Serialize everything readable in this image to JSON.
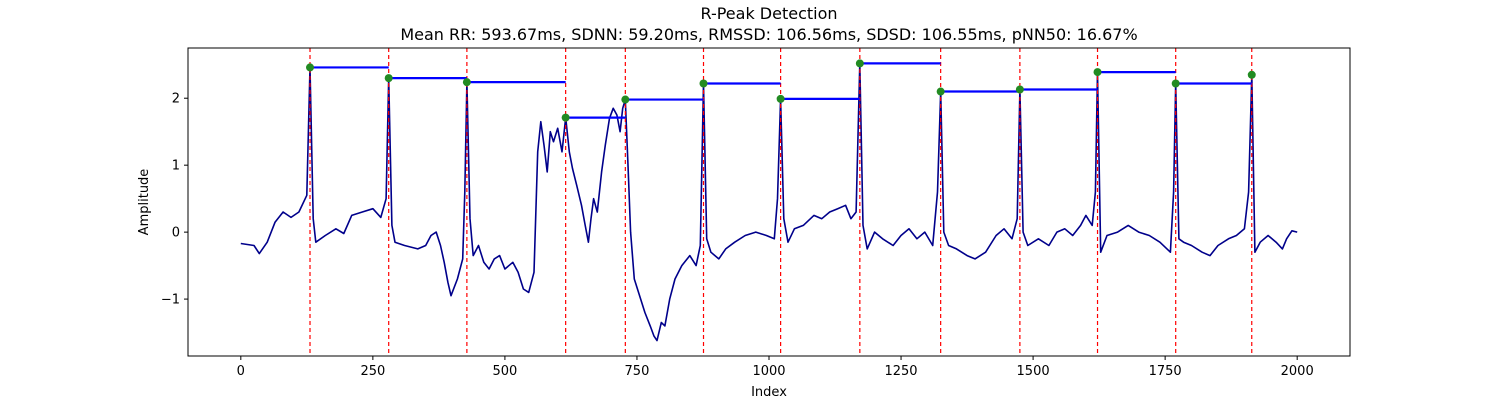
{
  "chart_data": {
    "type": "line",
    "title": "R-Peak Detection",
    "subtitle": "Mean RR: 593.67ms, SDNN: 59.20ms, RMSSD: 106.56ms, SDSD: 106.55ms, pNN50: 16.67%",
    "xlabel": "Index",
    "ylabel": "Amplitude",
    "xlim": [
      -100,
      2100
    ],
    "ylim": [
      -1.85,
      2.75
    ],
    "xticks": [
      0,
      250,
      500,
      750,
      1000,
      1250,
      1500,
      1750,
      2000
    ],
    "yticks": [
      -1,
      0,
      1,
      2
    ],
    "grid": false,
    "colors": {
      "signal": "#00008b",
      "peak_line": "#ff0000",
      "peak_marker": "#228b22",
      "rr_bar": "#0000ff"
    },
    "peaks": [
      {
        "x": 131,
        "y": 2.46
      },
      {
        "x": 280,
        "y": 2.3
      },
      {
        "x": 428,
        "y": 2.24
      },
      {
        "x": 615,
        "y": 1.71
      },
      {
        "x": 728,
        "y": 1.98
      },
      {
        "x": 876,
        "y": 2.22
      },
      {
        "x": 1022,
        "y": 1.99
      },
      {
        "x": 1172,
        "y": 2.52
      },
      {
        "x": 1325,
        "y": 2.1
      },
      {
        "x": 1475,
        "y": 2.13
      },
      {
        "x": 1622,
        "y": 2.39
      },
      {
        "x": 1770,
        "y": 2.22
      },
      {
        "x": 1914,
        "y": 2.35
      }
    ],
    "signal_anchors": [
      [
        0,
        -0.17
      ],
      [
        25,
        -0.2
      ],
      [
        35,
        -0.32
      ],
      [
        50,
        -0.15
      ],
      [
        65,
        0.15
      ],
      [
        80,
        0.3
      ],
      [
        95,
        0.22
      ],
      [
        110,
        0.3
      ],
      [
        125,
        0.55
      ],
      [
        131,
        2.46
      ],
      [
        137,
        0.2
      ],
      [
        142,
        -0.15
      ],
      [
        160,
        -0.05
      ],
      [
        180,
        0.05
      ],
      [
        195,
        -0.02
      ],
      [
        210,
        0.25
      ],
      [
        230,
        0.3
      ],
      [
        250,
        0.35
      ],
      [
        265,
        0.22
      ],
      [
        275,
        0.5
      ],
      [
        280,
        2.3
      ],
      [
        286,
        0.1
      ],
      [
        292,
        -0.15
      ],
      [
        310,
        -0.2
      ],
      [
        335,
        -0.25
      ],
      [
        350,
        -0.2
      ],
      [
        360,
        -0.05
      ],
      [
        370,
        0.0
      ],
      [
        378,
        -0.2
      ],
      [
        385,
        -0.45
      ],
      [
        392,
        -0.75
      ],
      [
        398,
        -0.95
      ],
      [
        410,
        -0.7
      ],
      [
        420,
        -0.4
      ],
      [
        424,
        0.6
      ],
      [
        428,
        2.24
      ],
      [
        434,
        0.2
      ],
      [
        440,
        -0.35
      ],
      [
        450,
        -0.2
      ],
      [
        460,
        -0.45
      ],
      [
        470,
        -0.55
      ],
      [
        480,
        -0.4
      ],
      [
        490,
        -0.35
      ],
      [
        500,
        -0.55
      ],
      [
        515,
        -0.45
      ],
      [
        525,
        -0.6
      ],
      [
        535,
        -0.85
      ],
      [
        545,
        -0.9
      ],
      [
        555,
        -0.6
      ],
      [
        562,
        1.2
      ],
      [
        568,
        1.65
      ],
      [
        574,
        1.3
      ],
      [
        580,
        0.9
      ],
      [
        586,
        1.5
      ],
      [
        592,
        1.35
      ],
      [
        600,
        1.55
      ],
      [
        608,
        1.2
      ],
      [
        615,
        1.71
      ],
      [
        622,
        1.2
      ],
      [
        628,
        0.95
      ],
      [
        636,
        0.7
      ],
      [
        645,
        0.4
      ],
      [
        652,
        0.1
      ],
      [
        658,
        -0.15
      ],
      [
        663,
        0.2
      ],
      [
        668,
        0.5
      ],
      [
        675,
        0.3
      ],
      [
        683,
        0.9
      ],
      [
        690,
        1.3
      ],
      [
        698,
        1.7
      ],
      [
        705,
        1.85
      ],
      [
        712,
        1.75
      ],
      [
        718,
        1.5
      ],
      [
        723,
        1.85
      ],
      [
        728,
        1.98
      ],
      [
        733,
        1.0
      ],
      [
        738,
        0.0
      ],
      [
        745,
        -0.7
      ],
      [
        755,
        -0.95
      ],
      [
        765,
        -1.2
      ],
      [
        775,
        -1.4
      ],
      [
        782,
        -1.55
      ],
      [
        788,
        -1.62
      ],
      [
        796,
        -1.35
      ],
      [
        803,
        -1.4
      ],
      [
        812,
        -1.0
      ],
      [
        822,
        -0.7
      ],
      [
        835,
        -0.5
      ],
      [
        850,
        -0.35
      ],
      [
        862,
        -0.5
      ],
      [
        870,
        -0.2
      ],
      [
        876,
        2.22
      ],
      [
        882,
        -0.1
      ],
      [
        890,
        -0.3
      ],
      [
        905,
        -0.4
      ],
      [
        918,
        -0.25
      ],
      [
        935,
        -0.15
      ],
      [
        955,
        -0.05
      ],
      [
        975,
        0.0
      ],
      [
        995,
        -0.05
      ],
      [
        1010,
        -0.1
      ],
      [
        1016,
        0.5
      ],
      [
        1022,
        1.99
      ],
      [
        1028,
        0.2
      ],
      [
        1036,
        -0.15
      ],
      [
        1048,
        0.05
      ],
      [
        1065,
        0.1
      ],
      [
        1085,
        0.25
      ],
      [
        1100,
        0.2
      ],
      [
        1115,
        0.3
      ],
      [
        1130,
        0.35
      ],
      [
        1145,
        0.4
      ],
      [
        1155,
        0.2
      ],
      [
        1165,
        0.3
      ],
      [
        1172,
        2.52
      ],
      [
        1178,
        0.1
      ],
      [
        1186,
        -0.25
      ],
      [
        1200,
        0.0
      ],
      [
        1215,
        -0.1
      ],
      [
        1235,
        -0.2
      ],
      [
        1250,
        -0.05
      ],
      [
        1265,
        0.05
      ],
      [
        1280,
        -0.1
      ],
      [
        1295,
        0.0
      ],
      [
        1310,
        -0.2
      ],
      [
        1319,
        0.6
      ],
      [
        1325,
        2.1
      ],
      [
        1331,
        0.0
      ],
      [
        1340,
        -0.2
      ],
      [
        1355,
        -0.25
      ],
      [
        1375,
        -0.35
      ],
      [
        1390,
        -0.4
      ],
      [
        1410,
        -0.3
      ],
      [
        1430,
        -0.05
      ],
      [
        1445,
        0.05
      ],
      [
        1460,
        -0.1
      ],
      [
        1470,
        0.2
      ],
      [
        1475,
        2.13
      ],
      [
        1481,
        0.0
      ],
      [
        1490,
        -0.2
      ],
      [
        1510,
        -0.1
      ],
      [
        1530,
        -0.2
      ],
      [
        1545,
        0.0
      ],
      [
        1560,
        0.05
      ],
      [
        1575,
        -0.05
      ],
      [
        1590,
        0.1
      ],
      [
        1600,
        0.25
      ],
      [
        1612,
        0.1
      ],
      [
        1618,
        0.6
      ],
      [
        1622,
        2.39
      ],
      [
        1628,
        -0.3
      ],
      [
        1640,
        -0.05
      ],
      [
        1660,
        0.0
      ],
      [
        1680,
        0.1
      ],
      [
        1700,
        0.0
      ],
      [
        1720,
        -0.05
      ],
      [
        1740,
        -0.15
      ],
      [
        1760,
        -0.3
      ],
      [
        1766,
        0.6
      ],
      [
        1770,
        2.22
      ],
      [
        1776,
        -0.1
      ],
      [
        1785,
        -0.15
      ],
      [
        1800,
        -0.2
      ],
      [
        1820,
        -0.3
      ],
      [
        1835,
        -0.35
      ],
      [
        1850,
        -0.2
      ],
      [
        1870,
        -0.1
      ],
      [
        1885,
        -0.05
      ],
      [
        1900,
        0.05
      ],
      [
        1908,
        0.6
      ],
      [
        1914,
        2.35
      ],
      [
        1920,
        -0.3
      ],
      [
        1930,
        -0.15
      ],
      [
        1945,
        -0.05
      ],
      [
        1960,
        -0.15
      ],
      [
        1972,
        -0.25
      ],
      [
        1980,
        -0.1
      ],
      [
        1990,
        0.02
      ],
      [
        2000,
        0.0
      ]
    ]
  }
}
